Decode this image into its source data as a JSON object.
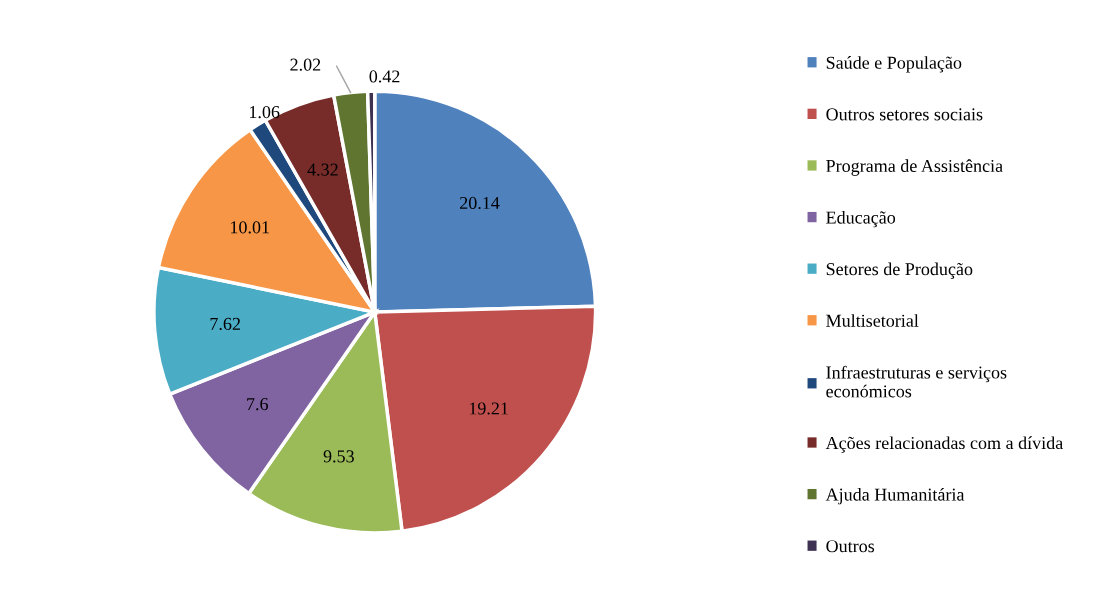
{
  "chart_data": {
    "type": "pie",
    "categories": [
      "Saúde e População",
      "Outros setores sociais",
      "Programa de Assistência",
      "Educação",
      "Setores de Produção",
      "Multisetorial",
      "Infraestruturas e serviços económicos",
      "Ações relacionadas com a dívida",
      "Ajuda Humanitária",
      "Outros"
    ],
    "values": [
      20.14,
      19.21,
      9.53,
      7.6,
      7.62,
      10.01,
      1.06,
      4.32,
      2.02,
      0.42
    ],
    "colors": [
      "#4f81bd",
      "#c0504d",
      "#9bbb59",
      "#8064a2",
      "#4bacc6",
      "#f79646",
      "#1f497d",
      "#772c2a",
      "#5f7530",
      "#3f3151"
    ],
    "data_labels": true,
    "legend": "right"
  }
}
